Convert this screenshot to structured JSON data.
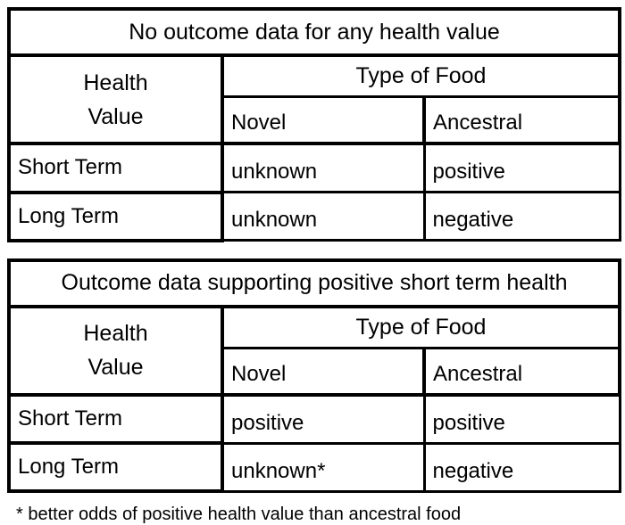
{
  "colors": {
    "background": "#ffffff",
    "border": "#000000",
    "text": "#000000"
  },
  "tables": [
    {
      "title": "No outcome data for any health value",
      "corner": {
        "line1": "Health",
        "line2": "Value"
      },
      "group_header": "Type of Food",
      "col_headers": [
        "Novel",
        "Ancestral"
      ],
      "rows": [
        {
          "label": "Short Term",
          "values": [
            "unknown",
            "positive"
          ]
        },
        {
          "label": "Long Term",
          "values": [
            "unknown",
            "negative"
          ]
        }
      ]
    },
    {
      "title": "Outcome data supporting positive short term health",
      "corner": {
        "line1": "Health",
        "line2": "Value"
      },
      "group_header": "Type of Food",
      "col_headers": [
        "Novel",
        "Ancestral"
      ],
      "rows": [
        {
          "label": "Short Term",
          "values": [
            "positive",
            "positive"
          ]
        },
        {
          "label": "Long Term",
          "values": [
            "unknown*",
            "negative"
          ]
        }
      ]
    }
  ],
  "footnote": "* better odds of positive health value than ancestral food"
}
